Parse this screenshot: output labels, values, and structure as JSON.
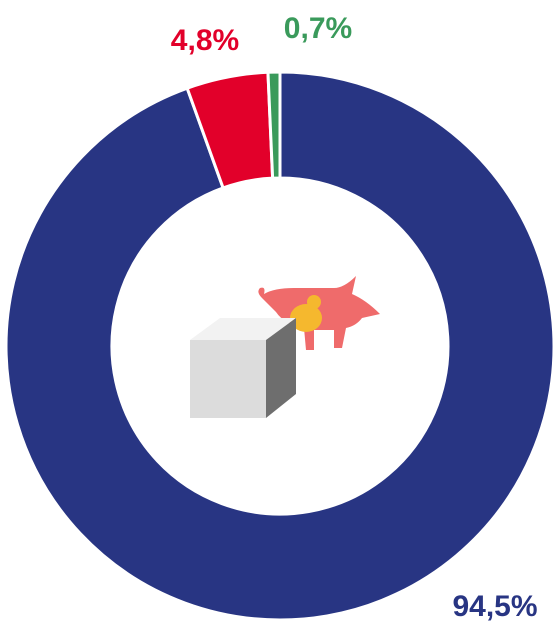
{
  "chart_data": {
    "type": "pie",
    "donut": true,
    "categories": [
      null,
      null,
      null
    ],
    "values": [
      94.5,
      4.8,
      0.7
    ],
    "value_labels": [
      "94,5%",
      "4,8%",
      "0,7%"
    ],
    "colors": [
      "#283583",
      "#e2002a",
      "#3a9a5b"
    ]
  }
}
